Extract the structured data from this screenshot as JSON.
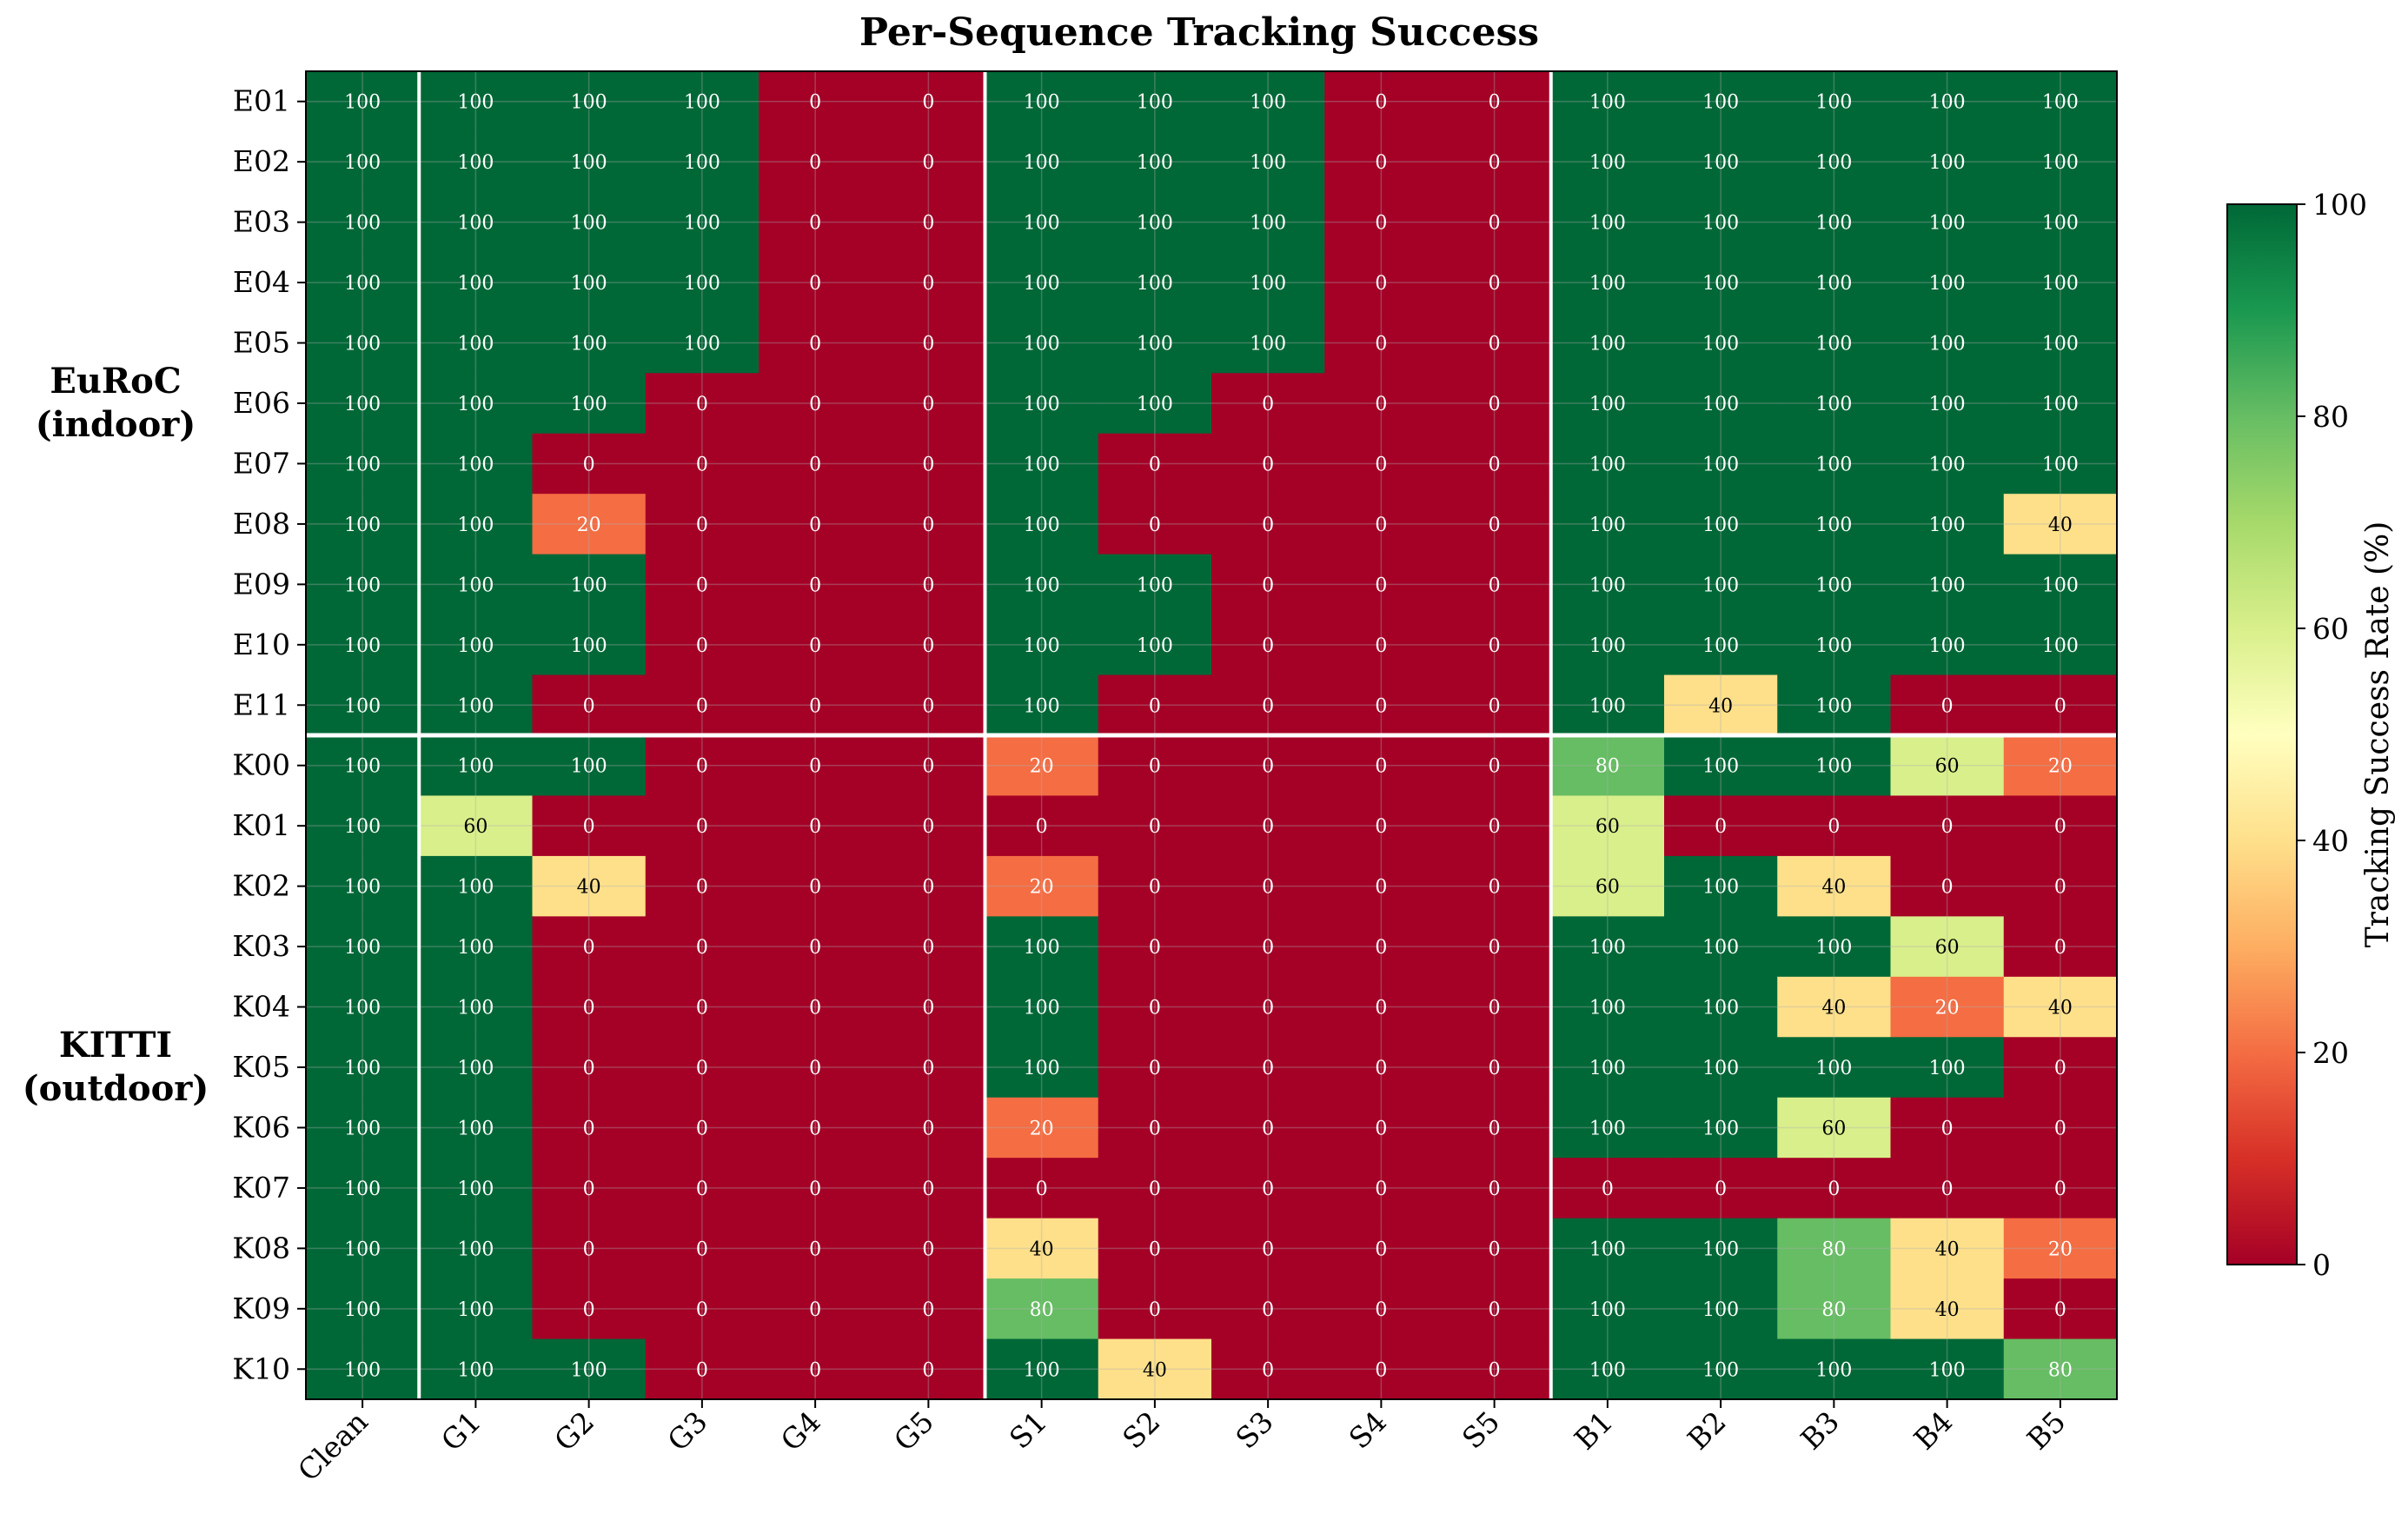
{
  "chart_data": {
    "type": "heatmap",
    "title": "Per-Sequence Tracking Success",
    "x_categories": [
      "Clean",
      "G1",
      "G2",
      "G3",
      "G4",
      "G5",
      "S1",
      "S2",
      "S3",
      "S4",
      "S5",
      "B1",
      "B2",
      "B3",
      "B4",
      "B5"
    ],
    "y_categories": [
      "E01",
      "E02",
      "E03",
      "E04",
      "E05",
      "E06",
      "E07",
      "E08",
      "E09",
      "E10",
      "E11",
      "K00",
      "K01",
      "K02",
      "K03",
      "K04",
      "K05",
      "K06",
      "K07",
      "K08",
      "K09",
      "K10"
    ],
    "row_groups": [
      {
        "label_line1": "EuRoC",
        "label_line2": "(indoor)",
        "rows": [
          "E01",
          "E02",
          "E03",
          "E04",
          "E05",
          "E06",
          "E07",
          "E08",
          "E09",
          "E10",
          "E11"
        ]
      },
      {
        "label_line1": "KITTI",
        "label_line2": "(outdoor)",
        "rows": [
          "K00",
          "K01",
          "K02",
          "K03",
          "K04",
          "K05",
          "K06",
          "K07",
          "K08",
          "K09",
          "K10"
        ]
      }
    ],
    "values": [
      [
        100,
        100,
        100,
        100,
        0,
        0,
        100,
        100,
        100,
        0,
        0,
        100,
        100,
        100,
        100,
        100
      ],
      [
        100,
        100,
        100,
        100,
        0,
        0,
        100,
        100,
        100,
        0,
        0,
        100,
        100,
        100,
        100,
        100
      ],
      [
        100,
        100,
        100,
        100,
        0,
        0,
        100,
        100,
        100,
        0,
        0,
        100,
        100,
        100,
        100,
        100
      ],
      [
        100,
        100,
        100,
        100,
        0,
        0,
        100,
        100,
        100,
        0,
        0,
        100,
        100,
        100,
        100,
        100
      ],
      [
        100,
        100,
        100,
        100,
        0,
        0,
        100,
        100,
        100,
        0,
        0,
        100,
        100,
        100,
        100,
        100
      ],
      [
        100,
        100,
        100,
        0,
        0,
        0,
        100,
        100,
        0,
        0,
        0,
        100,
        100,
        100,
        100,
        100
      ],
      [
        100,
        100,
        0,
        0,
        0,
        0,
        100,
        0,
        0,
        0,
        0,
        100,
        100,
        100,
        100,
        100
      ],
      [
        100,
        100,
        20,
        0,
        0,
        0,
        100,
        0,
        0,
        0,
        0,
        100,
        100,
        100,
        100,
        40
      ],
      [
        100,
        100,
        100,
        0,
        0,
        0,
        100,
        100,
        0,
        0,
        0,
        100,
        100,
        100,
        100,
        100
      ],
      [
        100,
        100,
        100,
        0,
        0,
        0,
        100,
        100,
        0,
        0,
        0,
        100,
        100,
        100,
        100,
        100
      ],
      [
        100,
        100,
        0,
        0,
        0,
        0,
        100,
        0,
        0,
        0,
        0,
        100,
        40,
        100,
        0,
        0
      ],
      [
        100,
        100,
        100,
        0,
        0,
        0,
        20,
        0,
        0,
        0,
        0,
        80,
        100,
        100,
        60,
        20
      ],
      [
        100,
        60,
        0,
        0,
        0,
        0,
        0,
        0,
        0,
        0,
        0,
        60,
        0,
        0,
        0,
        0
      ],
      [
        100,
        100,
        40,
        0,
        0,
        0,
        20,
        0,
        0,
        0,
        0,
        60,
        100,
        40,
        0,
        0
      ],
      [
        100,
        100,
        0,
        0,
        0,
        0,
        100,
        0,
        0,
        0,
        0,
        100,
        100,
        100,
        60,
        0
      ],
      [
        100,
        100,
        0,
        0,
        0,
        0,
        100,
        0,
        0,
        0,
        0,
        100,
        100,
        40,
        20,
        40
      ],
      [
        100,
        100,
        0,
        0,
        0,
        0,
        100,
        0,
        0,
        0,
        0,
        100,
        100,
        100,
        100,
        0
      ],
      [
        100,
        100,
        0,
        0,
        0,
        0,
        20,
        0,
        0,
        0,
        0,
        100,
        100,
        60,
        0,
        0
      ],
      [
        100,
        100,
        0,
        0,
        0,
        0,
        0,
        0,
        0,
        0,
        0,
        0,
        0,
        0,
        0,
        0
      ],
      [
        100,
        100,
        0,
        0,
        0,
        0,
        40,
        0,
        0,
        0,
        0,
        100,
        100,
        80,
        40,
        20
      ],
      [
        100,
        100,
        0,
        0,
        0,
        0,
        80,
        0,
        0,
        0,
        0,
        100,
        100,
        80,
        40,
        0
      ],
      [
        100,
        100,
        100,
        0,
        0,
        0,
        100,
        40,
        0,
        0,
        0,
        100,
        100,
        100,
        100,
        80
      ]
    ],
    "vertical_separators_after_columns": [
      "Clean",
      "G5",
      "S5"
    ],
    "horizontal_separator_after_row": "E11",
    "grid": true,
    "colorbar": {
      "label": "Tracking Success Rate (%)",
      "range": [
        0,
        100
      ],
      "ticks": [
        0,
        20,
        40,
        60,
        80,
        100
      ],
      "colormap": "RdYlGn",
      "position": "right"
    }
  }
}
